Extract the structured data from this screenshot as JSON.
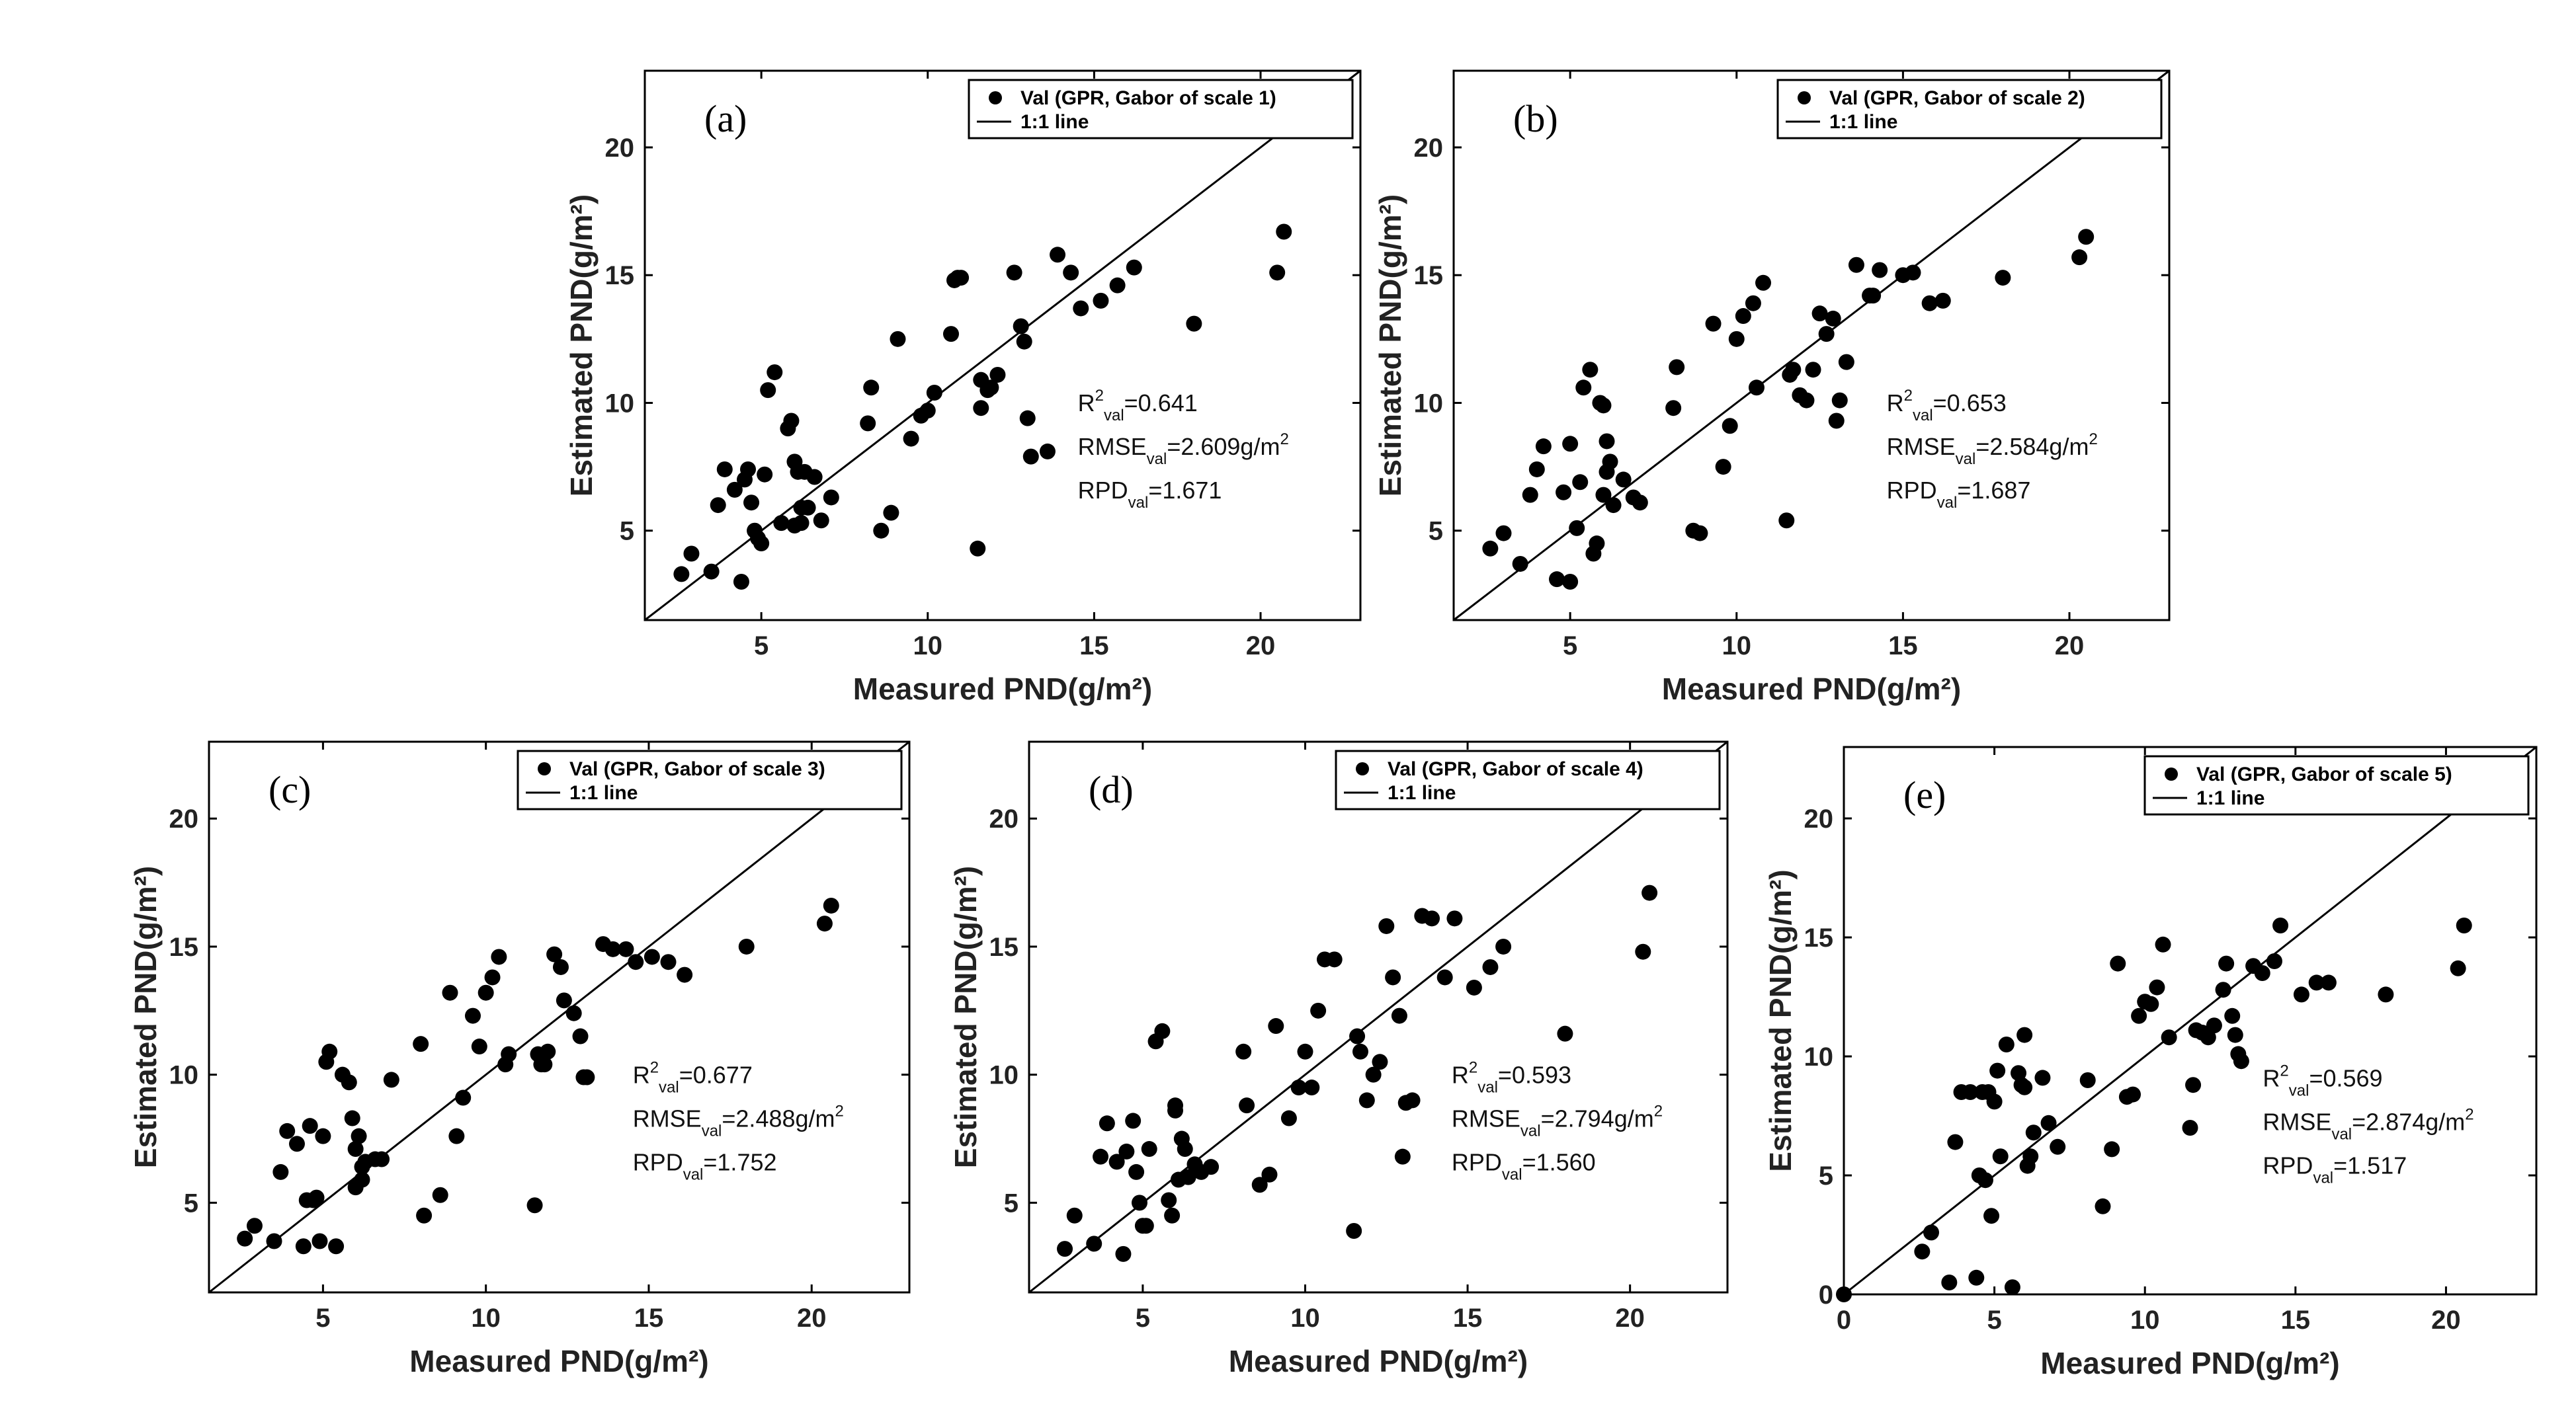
{
  "colors": {
    "points": "#000000",
    "frame": "#000000",
    "background": "#ffffff"
  },
  "chart_data": [
    {
      "type": "scatter",
      "panel": "(a)",
      "xlabel": "Measured PND(g/m²)",
      "ylabel": "Estimated PND(g/m²)",
      "xlim": [
        1.5,
        23
      ],
      "ylim": [
        1.5,
        23
      ],
      "xticks": [
        "5",
        "10",
        "15",
        "20"
      ],
      "yticks": [
        "5",
        "10",
        "15",
        "20"
      ],
      "legend": {
        "series": "Val (GPR, Gabor of scale 1)",
        "line": "1:1 line",
        "placement": "top-right"
      },
      "stats": {
        "r2": {
          "label": "R",
          "sup": "2",
          "sub": "val",
          "value": "=0.641"
        },
        "rmse": {
          "label": "RMSE",
          "sub": "val",
          "value": "=2.609g/m",
          "sup": "2"
        },
        "rpd": {
          "label": "RPD",
          "sub": "val",
          "value": "=1.671"
        }
      },
      "series": [
        {
          "name": "Val (GPR, Gabor of scale 1)",
          "x": [
            2.6,
            2.9,
            3.5,
            3.7,
            3.9,
            4.2,
            4.4,
            4.5,
            4.6,
            4.7,
            4.8,
            4.9,
            5.0,
            5.1,
            5.2,
            5.4,
            5.6,
            5.8,
            5.9,
            6.0,
            6.0,
            6.1,
            6.2,
            6.2,
            6.3,
            6.4,
            6.6,
            6.8,
            7.1,
            8.2,
            8.3,
            8.6,
            8.9,
            9.1,
            9.5,
            9.8,
            10.0,
            10.2,
            10.7,
            10.8,
            10.9,
            11.0,
            11.5,
            11.6,
            11.6,
            11.8,
            11.9,
            12.1,
            12.6,
            12.8,
            12.9,
            13.0,
            13.1,
            13.6,
            13.9,
            14.3,
            14.6,
            15.2,
            15.7,
            16.2,
            18.0,
            20.5,
            20.7
          ],
          "y": [
            3.3,
            4.1,
            3.4,
            6.0,
            7.4,
            6.6,
            3.0,
            7.0,
            7.4,
            6.1,
            5.0,
            4.7,
            4.5,
            7.2,
            10.5,
            11.2,
            5.3,
            9.0,
            9.3,
            7.7,
            5.2,
            7.3,
            5.3,
            5.9,
            7.3,
            5.9,
            7.1,
            5.4,
            6.3,
            9.2,
            10.6,
            5.0,
            5.7,
            12.5,
            8.6,
            9.5,
            9.7,
            10.4,
            12.7,
            14.8,
            14.9,
            14.9,
            4.3,
            10.9,
            9.8,
            10.5,
            10.6,
            11.1,
            15.1,
            13.0,
            12.4,
            9.4,
            7.9,
            8.1,
            15.8,
            15.1,
            13.7,
            14.0,
            14.6,
            15.3,
            13.1,
            15.1,
            16.7
          ]
        }
      ]
    },
    {
      "type": "scatter",
      "panel": "(b)",
      "xlabel": "Measured PND(g/m²)",
      "ylabel": "Estimated PND(g/m²)",
      "xlim": [
        1.5,
        23
      ],
      "ylim": [
        1.5,
        23
      ],
      "xticks": [
        "5",
        "10",
        "15",
        "20"
      ],
      "yticks": [
        "5",
        "10",
        "15",
        "20"
      ],
      "legend": {
        "series": "Val (GPR, Gabor of scale 2)",
        "line": "1:1 line",
        "placement": "top-right"
      },
      "stats": {
        "r2": {
          "label": "R",
          "sup": "2",
          "sub": "val",
          "value": "=0.653"
        },
        "rmse": {
          "label": "RMSE",
          "sub": "val",
          "value": "=2.584g/m",
          "sup": "2"
        },
        "rpd": {
          "label": "RPD",
          "sub": "val",
          "value": "=1.687"
        }
      },
      "series": [
        {
          "name": "Val (GPR, Gabor of scale 2)",
          "x": [
            2.6,
            3.0,
            3.5,
            3.8,
            4.0,
            4.2,
            4.6,
            4.8,
            5.0,
            5.0,
            5.2,
            5.3,
            5.4,
            5.6,
            5.7,
            5.8,
            5.9,
            6.0,
            6.0,
            6.1,
            6.1,
            6.2,
            6.3,
            6.6,
            6.9,
            7.1,
            8.1,
            8.2,
            8.7,
            8.9,
            9.3,
            9.6,
            9.8,
            10.0,
            10.2,
            10.5,
            10.6,
            10.8,
            11.5,
            11.6,
            11.7,
            11.9,
            12.1,
            12.3,
            12.5,
            12.7,
            12.9,
            13.0,
            13.1,
            13.3,
            13.6,
            14.0,
            14.1,
            14.3,
            15.0,
            15.3,
            15.8,
            16.2,
            18.0,
            20.3,
            20.5
          ],
          "y": [
            4.3,
            4.9,
            3.7,
            6.4,
            7.4,
            8.3,
            3.1,
            6.5,
            8.4,
            3.0,
            5.1,
            6.9,
            10.6,
            11.3,
            4.1,
            4.5,
            10.0,
            9.9,
            6.4,
            7.3,
            8.5,
            7.7,
            6.0,
            7.0,
            6.3,
            6.1,
            9.8,
            11.4,
            5.0,
            4.9,
            13.1,
            7.5,
            9.1,
            12.5,
            13.4,
            13.9,
            10.6,
            14.7,
            5.4,
            11.1,
            11.3,
            10.3,
            10.1,
            11.3,
            13.5,
            12.7,
            13.3,
            9.3,
            10.1,
            11.6,
            15.4,
            14.2,
            14.2,
            15.2,
            15.0,
            15.1,
            13.9,
            14.0,
            14.9,
            15.7,
            16.5
          ]
        }
      ]
    },
    {
      "type": "scatter",
      "panel": "(c)",
      "xlabel": "Measured PND(g/m²)",
      "ylabel": "Estimated PND(g/m²)",
      "xlim": [
        1.5,
        23
      ],
      "ylim": [
        1.5,
        23
      ],
      "xticks": [
        "5",
        "10",
        "15",
        "20"
      ],
      "yticks": [
        "5",
        "10",
        "15",
        "20"
      ],
      "legend": {
        "series": "Val (GPR, Gabor of scale 3)",
        "line": "1:1 line",
        "placement": "top-right"
      },
      "stats": {
        "r2": {
          "label": "R",
          "sup": "2",
          "sub": "val",
          "value": "=0.677"
        },
        "rmse": {
          "label": "RMSE",
          "sub": "val",
          "value": "=2.488g/m",
          "sup": "2"
        },
        "rpd": {
          "label": "RPD",
          "sub": "val",
          "value": "=1.752"
        }
      },
      "series": [
        {
          "name": "Val (GPR, Gabor of scale 3)",
          "x": [
            2.6,
            2.9,
            3.5,
            3.7,
            3.9,
            4.2,
            4.4,
            4.5,
            4.6,
            4.7,
            4.8,
            4.9,
            5.0,
            5.1,
            5.2,
            5.4,
            5.6,
            5.8,
            5.9,
            6.0,
            6.0,
            6.1,
            6.2,
            6.2,
            6.3,
            6.6,
            6.8,
            7.1,
            8.0,
            8.1,
            8.6,
            8.9,
            9.1,
            9.3,
            9.6,
            9.8,
            10.0,
            10.2,
            10.4,
            10.6,
            10.7,
            11.5,
            11.6,
            11.7,
            11.8,
            11.9,
            12.1,
            12.3,
            12.4,
            12.7,
            12.9,
            13.0,
            13.1,
            13.6,
            13.9,
            14.3,
            14.6,
            15.1,
            15.6,
            16.1,
            18.0,
            20.4,
            20.6
          ],
          "y": [
            3.6,
            4.1,
            3.5,
            6.2,
            7.8,
            7.3,
            3.3,
            5.1,
            8.0,
            5.1,
            5.2,
            3.5,
            7.6,
            10.5,
            10.9,
            3.3,
            10.0,
            9.7,
            8.3,
            7.1,
            5.6,
            7.6,
            6.4,
            5.9,
            6.6,
            6.7,
            6.7,
            9.8,
            11.2,
            4.5,
            5.3,
            13.2,
            7.6,
            9.1,
            12.3,
            11.1,
            13.2,
            13.8,
            14.6,
            10.4,
            10.8,
            4.9,
            10.8,
            10.4,
            10.4,
            10.9,
            14.7,
            14.2,
            12.9,
            12.4,
            11.5,
            9.9,
            9.9,
            15.1,
            14.9,
            14.9,
            14.4,
            14.6,
            14.4,
            13.9,
            15.0,
            15.9,
            16.6
          ]
        }
      ]
    },
    {
      "type": "scatter",
      "panel": "(d)",
      "xlabel": "Measured PND(g/m²)",
      "ylabel": "Estimated PND(g/m²)",
      "xlim": [
        1.5,
        23
      ],
      "ylim": [
        1.5,
        23
      ],
      "xticks": [
        "5",
        "10",
        "15",
        "20"
      ],
      "yticks": [
        "5",
        "10",
        "15",
        "20"
      ],
      "legend": {
        "series": "Val (GPR, Gabor of scale 4)",
        "line": "1:1 line",
        "placement": "top-right"
      },
      "stats": {
        "r2": {
          "label": "R",
          "sup": "2",
          "sub": "val",
          "value": "=0.593"
        },
        "rmse": {
          "label": "RMSE",
          "sub": "val",
          "value": "=2.794g/m",
          "sup": "2"
        },
        "rpd": {
          "label": "RPD",
          "sub": "val",
          "value": "=1.560"
        }
      },
      "series": [
        {
          "name": "Val (GPR, Gabor of scale 4)",
          "x": [
            2.6,
            2.9,
            3.5,
            3.7,
            3.9,
            4.2,
            4.4,
            4.5,
            4.7,
            4.8,
            4.9,
            5.0,
            5.1,
            5.2,
            5.4,
            5.6,
            5.8,
            5.9,
            6.0,
            6.0,
            6.1,
            6.2,
            6.3,
            6.4,
            6.6,
            6.8,
            7.1,
            8.1,
            8.2,
            8.6,
            8.9,
            9.1,
            9.5,
            9.8,
            10.0,
            10.2,
            10.4,
            10.6,
            10.9,
            11.5,
            11.6,
            11.7,
            11.9,
            12.1,
            12.3,
            12.5,
            12.7,
            12.9,
            13.0,
            13.1,
            13.3,
            13.6,
            13.9,
            14.3,
            14.6,
            15.2,
            15.7,
            16.1,
            18.0,
            20.4,
            20.6
          ],
          "y": [
            3.2,
            4.5,
            3.4,
            6.8,
            8.1,
            6.6,
            3.0,
            7.0,
            8.2,
            6.2,
            5.0,
            4.1,
            4.1,
            7.1,
            11.3,
            11.7,
            5.1,
            4.5,
            8.6,
            8.8,
            5.9,
            7.5,
            7.1,
            6.0,
            6.5,
            6.2,
            6.4,
            10.9,
            8.8,
            5.7,
            6.1,
            11.9,
            8.3,
            9.5,
            10.9,
            9.5,
            12.5,
            14.5,
            14.5,
            3.9,
            11.5,
            10.9,
            9.0,
            10.0,
            10.5,
            15.8,
            13.8,
            12.3,
            6.8,
            8.9,
            9.0,
            16.2,
            16.1,
            13.8,
            16.1,
            13.4,
            14.2,
            15.0,
            11.6,
            14.8,
            17.1
          ]
        }
      ]
    },
    {
      "type": "scatter",
      "panel": "(e)",
      "xlabel": "Measured PND(g/m²)",
      "ylabel": "Estimated PND(g/m²)",
      "xlim": [
        0,
        23
      ],
      "ylim": [
        0,
        23
      ],
      "xticks": [
        "0",
        "5",
        "10",
        "15",
        "20"
      ],
      "yticks": [
        "0",
        "5",
        "10",
        "15",
        "20"
      ],
      "legend": {
        "series": "Val (GPR, Gabor of scale 5)",
        "line": "1:1 line",
        "placement": "top-right"
      },
      "stats": {
        "r2": {
          "label": "R",
          "sup": "2",
          "sub": "val",
          "value": "=0.569"
        },
        "rmse": {
          "label": "RMSE",
          "sub": "val",
          "value": "=2.874g/m",
          "sup": "2"
        },
        "rpd": {
          "label": "RPD",
          "sub": "val",
          "value": "=1.517"
        }
      },
      "series": [
        {
          "name": "Val (GPR, Gabor of scale 5)",
          "x": [
            0.0,
            2.6,
            2.9,
            3.5,
            3.7,
            3.9,
            4.2,
            4.4,
            4.5,
            4.6,
            4.7,
            4.8,
            4.9,
            5.0,
            5.1,
            5.2,
            5.4,
            5.6,
            5.8,
            5.9,
            6.0,
            6.0,
            6.1,
            6.2,
            6.3,
            6.6,
            6.8,
            7.1,
            8.1,
            8.6,
            8.9,
            9.1,
            9.4,
            9.6,
            9.8,
            10.0,
            10.2,
            10.4,
            10.6,
            10.8,
            11.5,
            11.6,
            11.7,
            11.9,
            12.1,
            12.3,
            12.6,
            12.7,
            12.9,
            13.0,
            13.1,
            13.2,
            13.6,
            13.9,
            14.3,
            14.5,
            15.2,
            15.7,
            16.1,
            18.0,
            20.4,
            20.6
          ],
          "y": [
            0.0,
            1.8,
            2.6,
            0.5,
            6.4,
            8.5,
            8.5,
            0.7,
            5.0,
            8.5,
            4.8,
            8.5,
            3.3,
            8.1,
            9.4,
            5.8,
            10.5,
            0.3,
            9.3,
            8.8,
            10.9,
            8.7,
            5.4,
            5.8,
            6.8,
            9.1,
            7.2,
            6.2,
            9.0,
            3.7,
            6.1,
            13.9,
            8.3,
            8.4,
            11.7,
            12.3,
            12.2,
            12.9,
            14.7,
            10.8,
            7.0,
            8.8,
            11.1,
            11.0,
            10.8,
            11.3,
            12.8,
            13.9,
            11.7,
            10.9,
            10.1,
            9.8,
            13.8,
            13.5,
            14.0,
            15.5,
            12.6,
            13.1,
            13.1,
            12.6,
            13.7,
            15.5
          ]
        }
      ]
    }
  ]
}
